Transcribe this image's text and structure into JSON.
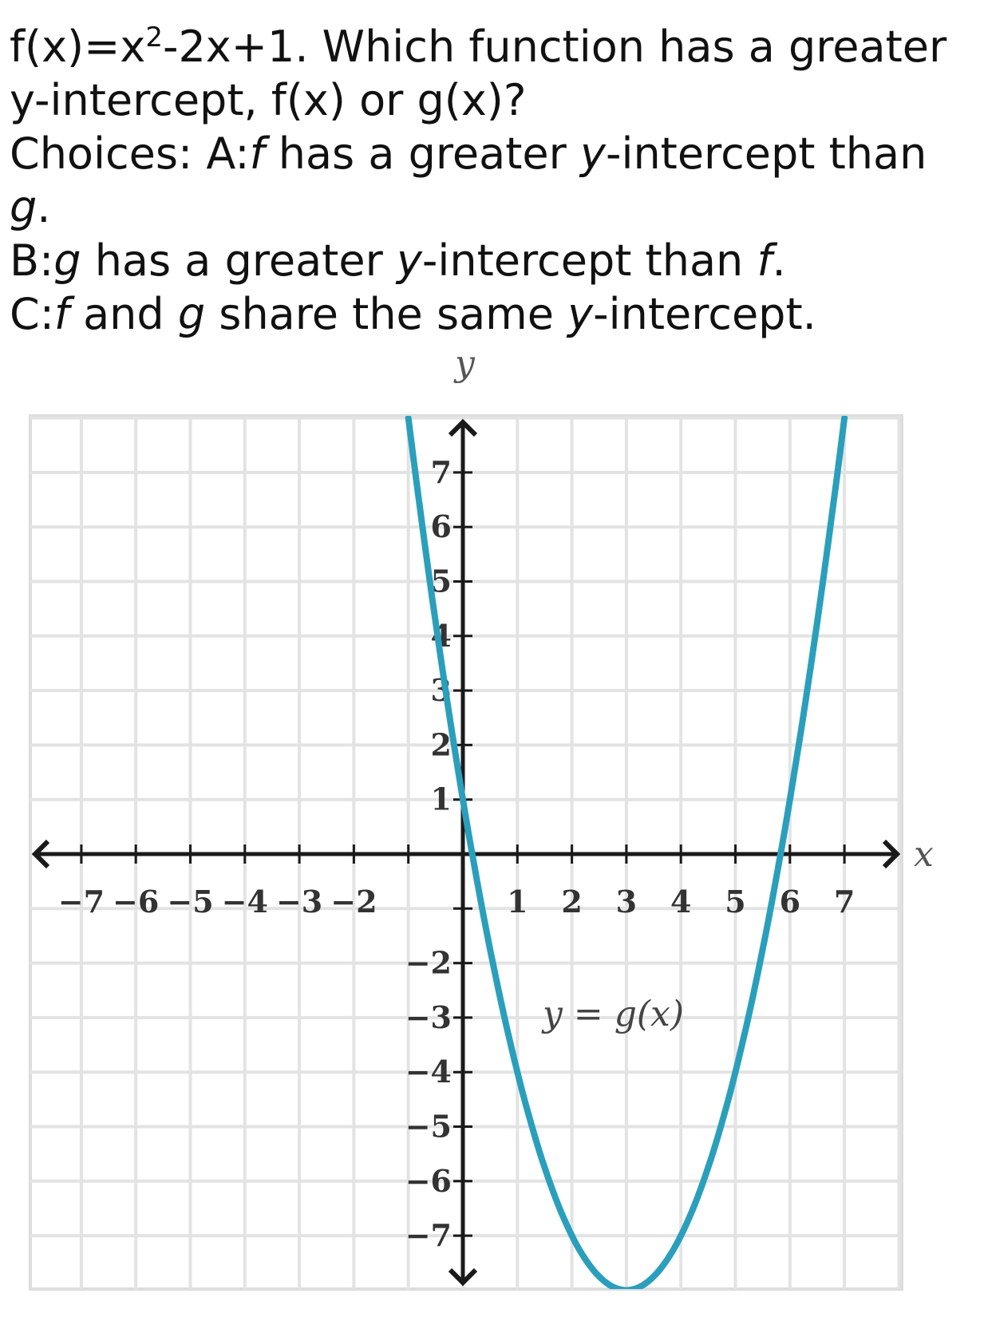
{
  "question": {
    "line1_pre": "f(x)=x",
    "line1_sup": "2",
    "line1_post": "-2x+1. Which function has a greater y-intercept, f(x) or g(x)?",
    "choices_prefix": "Choices: A:",
    "choice_a_f": "f",
    "choice_a_mid": " has a greater ",
    "choice_a_y": "y",
    "choice_a_mid2": "-intercept than ",
    "choice_a_g": "g",
    "choice_a_end": ".",
    "choice_b_prefix": "B:",
    "choice_b_g": "g",
    "choice_b_mid": " has a greater ",
    "choice_b_y": "y",
    "choice_b_mid2": "-intercept than ",
    "choice_b_f": "f",
    "choice_b_end": ".",
    "choice_c_prefix": "C:",
    "choice_c_f": "f",
    "choice_c_mid": " and ",
    "choice_c_g": "g",
    "choice_c_mid2": " share the same ",
    "choice_c_y": "y",
    "choice_c_end": "-intercept."
  },
  "chart_data": {
    "type": "line",
    "xlabel": "x",
    "ylabel": "y",
    "xlim": [
      -8,
      8
    ],
    "ylim": [
      -8,
      8
    ],
    "grid": true,
    "x_ticks": [
      -7,
      -6,
      -5,
      -4,
      -3,
      -2,
      1,
      2,
      3,
      4,
      5,
      6,
      7
    ],
    "x_tick_labels": [
      "−7",
      "−6",
      "−5",
      "−4",
      "−3",
      "−2",
      "1",
      "2",
      "3",
      "4",
      "5",
      "6",
      "7"
    ],
    "y_ticks": [
      7,
      6,
      5,
      4,
      3,
      2,
      1,
      -2,
      -3,
      -4,
      -5,
      -6,
      -7
    ],
    "y_tick_labels": [
      "7",
      "6",
      "5",
      "4",
      "3",
      "2",
      "1",
      "−2",
      "−3",
      "−4",
      "−5",
      "−6",
      "−7"
    ],
    "series": [
      {
        "name": "y = g(x)",
        "color": "#2a9fbc",
        "x": [
          -1.0,
          -0.5,
          0,
          0.5,
          1,
          1.5,
          2,
          2.5,
          3,
          3.5,
          4,
          4.5,
          5,
          5.5,
          6,
          6.5,
          7.0
        ],
        "y": [
          8,
          5.0,
          1,
          -2.0,
          -4.0,
          -6.0,
          -7.0,
          -7.8,
          -8,
          -7.8,
          -7.0,
          -6.0,
          -4.0,
          -2.0,
          0,
          3.5,
          8
        ]
      }
    ],
    "annotation": "y = g(x)"
  }
}
